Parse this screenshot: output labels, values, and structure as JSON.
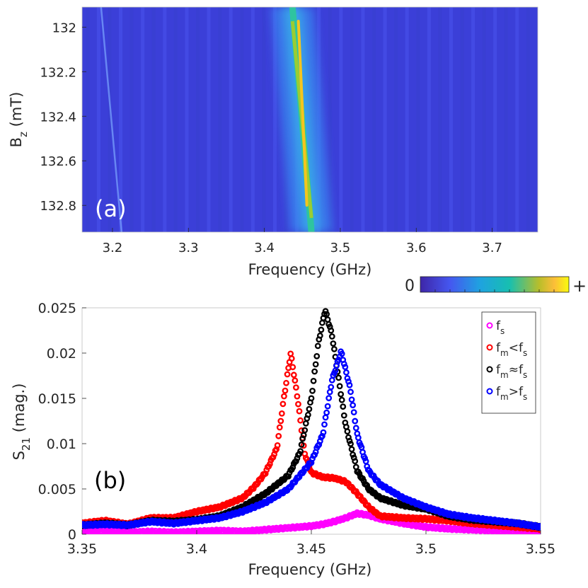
{
  "figure": {
    "colorbar": {
      "min_label": "0",
      "max_label": "+"
    }
  },
  "chart_data": [
    {
      "type": "heatmap",
      "panel_label": "(a)",
      "xlabel": "Frequency (GHz)",
      "ylabel_main": "B",
      "ylabel_sub": "z",
      "ylabel_tail": " (mT)",
      "xlim": [
        3.16,
        3.76
      ],
      "ylim": [
        131.91,
        132.92
      ],
      "y_reversed": true,
      "xticks": [
        3.2,
        3.3,
        3.4,
        3.5,
        3.6,
        3.7
      ],
      "xtick_labels": [
        "3.2",
        "3.3",
        "3.4",
        "3.5",
        "3.6",
        "3.7"
      ],
      "yticks": [
        132,
        132.2,
        132.4,
        132.6,
        132.8
      ],
      "ytick_labels": [
        "132",
        "132.2",
        "132.4",
        "132.6",
        "132.8"
      ],
      "main_resonance": {
        "freq_at_ymin": 3.437,
        "freq_at_ymax": 3.462,
        "peak_at_B": 132.45
      },
      "faint_mode": {
        "freq_at_ymin": 3.185,
        "freq_at_ymax": 3.212
      }
    },
    {
      "type": "scatter",
      "panel_label": "(b)",
      "xlabel": "Frequency (GHz)",
      "ylabel_main": "S",
      "ylabel_sub": "21",
      "ylabel_tail": " (mag.)",
      "xlim": [
        3.35,
        3.55
      ],
      "ylim": [
        0,
        0.025
      ],
      "xticks": [
        3.35,
        3.4,
        3.45,
        3.5,
        3.55
      ],
      "xtick_labels": [
        "3.35",
        "3.4",
        "3.45",
        "3.5",
        "3.55"
      ],
      "yticks": [
        0,
        0.005,
        0.01,
        0.015,
        0.02,
        0.025
      ],
      "ytick_labels": [
        "0",
        "0.005",
        "0.01",
        "0.015",
        "0.02",
        "0.025"
      ],
      "legend_position": "top-right",
      "series": [
        {
          "name": "fs",
          "color": "#ff00ff",
          "legend": {
            "base": "f",
            "sub": "s",
            "mid": "",
            "sub2": ""
          },
          "x": [
            3.35,
            3.36,
            3.37,
            3.38,
            3.39,
            3.4,
            3.41,
            3.42,
            3.43,
            3.44,
            3.45,
            3.455,
            3.46,
            3.465,
            3.47,
            3.475,
            3.48,
            3.49,
            3.5,
            3.51,
            3.52,
            3.53,
            3.54,
            3.55
          ],
          "y": [
            0.0003,
            0.0004,
            0.0002,
            0.0003,
            0.0002,
            0.0003,
            0.0004,
            0.0003,
            0.0005,
            0.0007,
            0.0009,
            0.0011,
            0.0014,
            0.0018,
            0.0023,
            0.0021,
            0.0017,
            0.0012,
            0.0008,
            0.0006,
            0.0005,
            0.0004,
            0.0004,
            0.0003
          ]
        },
        {
          "name": "fm<fs",
          "color": "#ff0000",
          "legend": {
            "base": "f",
            "sub": "m",
            "mid": "<f",
            "sub2": "s"
          },
          "x": [
            3.35,
            3.36,
            3.37,
            3.38,
            3.39,
            3.4,
            3.41,
            3.42,
            3.425,
            3.43,
            3.435,
            3.438,
            3.441,
            3.444,
            3.447,
            3.45,
            3.455,
            3.46,
            3.465,
            3.47,
            3.475,
            3.48,
            3.49,
            3.5,
            3.51,
            3.52,
            3.53,
            3.54,
            3.55
          ],
          "y": [
            0.0012,
            0.0015,
            0.0011,
            0.0018,
            0.0018,
            0.0025,
            0.003,
            0.004,
            0.0052,
            0.0068,
            0.0095,
            0.015,
            0.02,
            0.015,
            0.009,
            0.0068,
            0.0063,
            0.0062,
            0.0058,
            0.0045,
            0.003,
            0.002,
            0.0018,
            0.0017,
            0.0015,
            0.0012,
            0.001,
            0.0008,
            0.0006
          ]
        },
        {
          "name": "fm≈fs",
          "color": "#000000",
          "legend": {
            "base": "f",
            "sub": "m",
            "mid": "≈f",
            "sub2": "s"
          },
          "x": [
            3.35,
            3.36,
            3.37,
            3.38,
            3.39,
            3.4,
            3.41,
            3.42,
            3.43,
            3.44,
            3.445,
            3.45,
            3.453,
            3.456,
            3.459,
            3.462,
            3.465,
            3.47,
            3.475,
            3.48,
            3.49,
            3.5,
            3.51,
            3.52,
            3.53,
            3.54,
            3.55
          ],
          "y": [
            0.001,
            0.0012,
            0.001,
            0.0015,
            0.0014,
            0.0016,
            0.002,
            0.003,
            0.0045,
            0.0065,
            0.009,
            0.015,
            0.021,
            0.0248,
            0.022,
            0.017,
            0.012,
            0.007,
            0.005,
            0.004,
            0.0032,
            0.0028,
            0.002,
            0.0016,
            0.0014,
            0.0012,
            0.0008
          ]
        },
        {
          "name": "fm>fs",
          "color": "#0000ff",
          "legend": {
            "base": "f",
            "sub": "m",
            "mid": ">f",
            "sub2": "s"
          },
          "x": [
            3.35,
            3.36,
            3.37,
            3.38,
            3.39,
            3.4,
            3.41,
            3.42,
            3.43,
            3.44,
            3.445,
            3.45,
            3.455,
            3.459,
            3.463,
            3.467,
            3.47,
            3.475,
            3.48,
            3.49,
            3.5,
            3.51,
            3.52,
            3.53,
            3.54,
            3.55
          ],
          "y": [
            0.001,
            0.0011,
            0.001,
            0.0014,
            0.0012,
            0.0015,
            0.0018,
            0.0025,
            0.0035,
            0.005,
            0.0065,
            0.008,
            0.011,
            0.017,
            0.0202,
            0.016,
            0.011,
            0.007,
            0.0055,
            0.004,
            0.003,
            0.0022,
            0.0018,
            0.0015,
            0.0012,
            0.0008
          ]
        }
      ]
    }
  ]
}
